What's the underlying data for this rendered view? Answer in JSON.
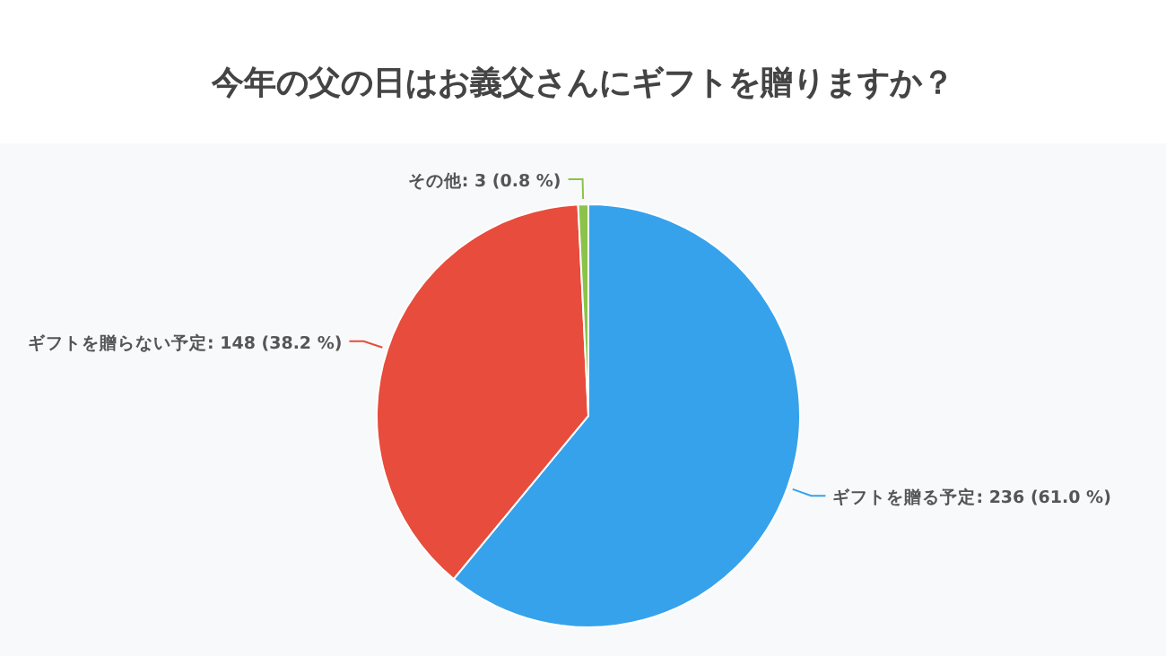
{
  "chart_data": {
    "type": "pie",
    "title": "今年の父の日はお義父さんにギフトを贈りますか？",
    "categories": [
      "ギフトを贈る予定",
      "ギフトを贈らない予定",
      "その他"
    ],
    "values": [
      236,
      148,
      3
    ],
    "value_labels": [
      "236 (61.0 %)",
      "148 (38.2 %)",
      "3 (0.8 %)"
    ],
    "colors": [
      "#36a2eb",
      "#e74c3c",
      "#8bc34a"
    ],
    "legend": false
  }
}
